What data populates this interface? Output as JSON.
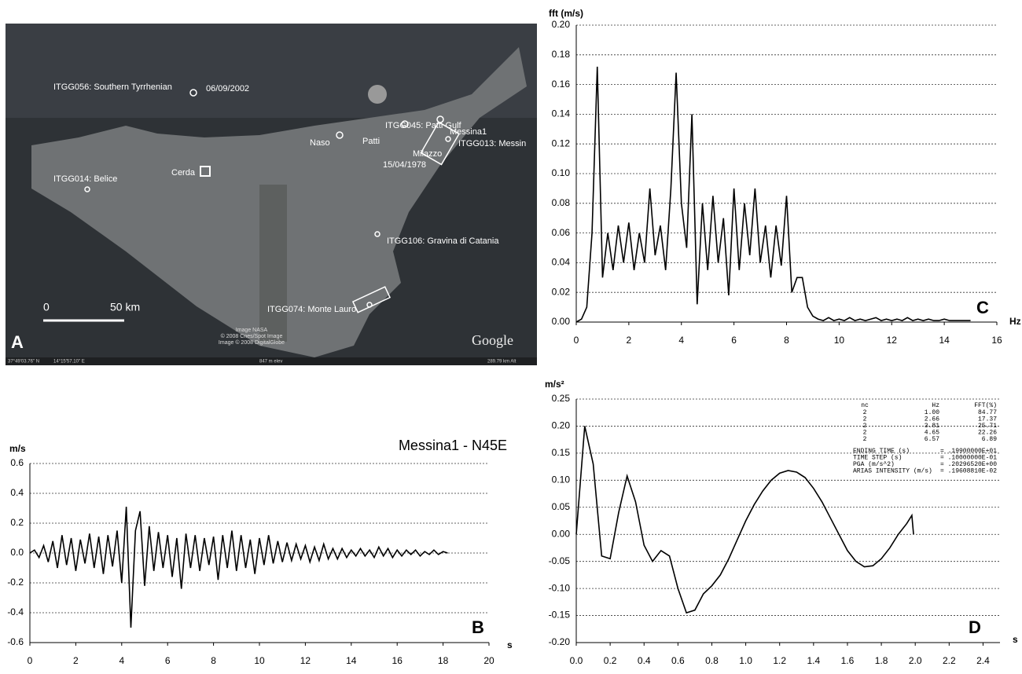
{
  "map": {
    "labels": [
      "ITGG056: Southern Tyrrhenian",
      "06/09/2002",
      "ITGG045: Patti Gulf",
      "Patti",
      "Milazzo",
      "Messina1",
      "Naso",
      "15/04/1978",
      "ITGG013: Messin",
      "Cerda",
      "ITGG014: Belice",
      "ITGG106: Gravina di Catania",
      "ITGG074: Monte Lauro"
    ],
    "scale": {
      "zero": "0",
      "length": "50 km"
    },
    "panel": "A",
    "credits": [
      "Image NASA",
      "© 2008 Cnes/Spot Image",
      "Image © 2008 DigitalGlobe"
    ],
    "logo": "Google",
    "status": {
      "lat": "37°49'03.76\" N",
      "lon": "14°15'57.10\" E",
      "elev": "847 m elev",
      "alt": "289.79 km Alt"
    }
  },
  "chart_data": [
    {
      "type": "line",
      "title": "Messina1 - N45E",
      "ylabel": "m/s",
      "panel": "B",
      "xunit": "s",
      "color": "#000000",
      "grid": true,
      "xlim": [
        0,
        20
      ],
      "xticks": [
        0,
        2,
        4,
        6,
        8,
        10,
        12,
        14,
        16,
        18,
        20
      ],
      "ylim": [
        -0.6,
        0.6
      ],
      "yticks": [
        -0.6,
        -0.4,
        -0.2,
        {
          "value": 0,
          "label": "0.0"
        },
        0.2,
        0.4,
        0.6
      ],
      "x": [
        0,
        0.2,
        0.4,
        0.6,
        0.8,
        1,
        1.2,
        1.4,
        1.6,
        1.8,
        2,
        2.2,
        2.4,
        2.6,
        2.8,
        3,
        3.2,
        3.4,
        3.6,
        3.8,
        4,
        4.2,
        4.4,
        4.6,
        4.8,
        5,
        5.2,
        5.4,
        5.6,
        5.8,
        6,
        6.2,
        6.4,
        6.6,
        6.8,
        7,
        7.2,
        7.4,
        7.6,
        7.8,
        8,
        8.2,
        8.4,
        8.6,
        8.8,
        9,
        9.2,
        9.4,
        9.6,
        9.8,
        10,
        10.2,
        10.4,
        10.6,
        10.8,
        11,
        11.2,
        11.4,
        11.6,
        11.8,
        12,
        12.2,
        12.4,
        12.6,
        12.8,
        13,
        13.2,
        13.4,
        13.6,
        13.8,
        14,
        14.2,
        14.4,
        14.6,
        14.8,
        15,
        15.2,
        15.4,
        15.6,
        15.8,
        16,
        16.2,
        16.4,
        16.6,
        16.8,
        17,
        17.2,
        17.4,
        17.6,
        17.8,
        18,
        18.2
      ],
      "values": [
        0,
        0.02,
        -0.03,
        0.05,
        -0.06,
        0.08,
        -0.1,
        0.12,
        -0.08,
        0.1,
        -0.12,
        0.09,
        -0.07,
        0.13,
        -0.1,
        0.11,
        -0.14,
        0.12,
        -0.09,
        0.15,
        -0.2,
        0.31,
        -0.5,
        0.15,
        0.28,
        -0.22,
        0.18,
        -0.12,
        0.14,
        -0.1,
        0.12,
        -0.16,
        0.1,
        -0.24,
        0.13,
        -0.1,
        0.12,
        -0.12,
        0.1,
        -0.08,
        0.11,
        -0.18,
        0.12,
        -0.1,
        0.15,
        -0.12,
        0.12,
        -0.1,
        0.09,
        -0.14,
        0.1,
        -0.08,
        0.12,
        -0.07,
        0.08,
        -0.06,
        0.07,
        -0.05,
        0.06,
        -0.04,
        0.05,
        -0.06,
        0.04,
        -0.05,
        0.06,
        -0.04,
        0.03,
        -0.04,
        0.03,
        -0.03,
        0.02,
        -0.02,
        0.03,
        -0.02,
        0.02,
        -0.03,
        0.04,
        -0.02,
        0.03,
        -0.03,
        0.02,
        -0.02,
        0.02,
        -0.01,
        0.02,
        -0.02,
        0.01,
        -0.01,
        0.02,
        -0.01,
        0.01,
        0
      ]
    },
    {
      "type": "line",
      "ylabel": "fft (m/s)",
      "panel": "C",
      "xunit": "Hz",
      "color": "#000000",
      "grid": true,
      "xlim": [
        0,
        16
      ],
      "xticks": [
        0,
        2,
        4,
        6,
        8,
        10,
        12,
        14,
        16
      ],
      "ylim": [
        0,
        0.2
      ],
      "yticks": [
        {
          "value": 0,
          "label": "0.00"
        },
        0.02,
        0.04,
        0.06,
        0.08,
        {
          "value": 0.1,
          "label": "0.10"
        },
        0.12,
        0.14,
        0.16,
        0.18,
        {
          "value": 0.2,
          "label": "0.20"
        }
      ],
      "x": [
        0,
        0.2,
        0.4,
        0.6,
        0.8,
        1,
        1.2,
        1.4,
        1.6,
        1.8,
        2,
        2.2,
        2.4,
        2.6,
        2.8,
        3,
        3.2,
        3.4,
        3.6,
        3.8,
        4,
        4.2,
        4.4,
        4.6,
        4.8,
        5,
        5.2,
        5.4,
        5.6,
        5.8,
        6,
        6.2,
        6.4,
        6.6,
        6.8,
        7,
        7.2,
        7.4,
        7.6,
        7.8,
        8,
        8.2,
        8.4,
        8.6,
        8.8,
        9,
        9.2,
        9.4,
        9.6,
        9.8,
        10,
        10.2,
        10.4,
        10.6,
        10.8,
        11,
        11.2,
        11.4,
        11.6,
        11.8,
        12,
        12.2,
        12.4,
        12.6,
        12.8,
        13,
        13.2,
        13.4,
        13.6,
        13.8,
        14,
        14.2,
        14.4,
        14.6,
        14.8,
        15
      ],
      "values": [
        0,
        0.002,
        0.01,
        0.06,
        0.172,
        0.03,
        0.06,
        0.035,
        0.065,
        0.04,
        0.067,
        0.035,
        0.06,
        0.04,
        0.09,
        0.045,
        0.065,
        0.035,
        0.09,
        0.168,
        0.08,
        0.05,
        0.14,
        0.012,
        0.08,
        0.035,
        0.085,
        0.04,
        0.07,
        0.018,
        0.09,
        0.035,
        0.08,
        0.045,
        0.09,
        0.04,
        0.065,
        0.03,
        0.065,
        0.038,
        0.085,
        0.02,
        0.03,
        0.03,
        0.01,
        0.004,
        0.002,
        0.001,
        0.003,
        0.001,
        0.002,
        0.001,
        0.003,
        0.001,
        0.002,
        0.001,
        0.002,
        0.003,
        0.001,
        0.002,
        0.001,
        0.002,
        0.001,
        0.003,
        0.001,
        0.002,
        0.001,
        0.002,
        0.001,
        0.001,
        0.002,
        0.001,
        0.001,
        0.001,
        0.001,
        0.001
      ]
    },
    {
      "type": "line",
      "ylabel": "m/s²",
      "panel": "D",
      "xunit": "s",
      "color": "#000000",
      "grid": true,
      "xlim": [
        0,
        2.5
      ],
      "xticks": [
        {
          "value": 0,
          "label": "0.0"
        },
        0.2,
        0.4,
        0.6,
        0.8,
        {
          "value": 1,
          "label": "1.0"
        },
        1.2,
        1.4,
        1.6,
        1.8,
        {
          "value": 2,
          "label": "2.0"
        },
        2.2,
        2.4
      ],
      "ylim": [
        -0.2,
        0.25
      ],
      "yticks": [
        {
          "value": -0.2,
          "label": "-0.20"
        },
        -0.15,
        {
          "value": -0.1,
          "label": "-0.10"
        },
        -0.05,
        {
          "value": 0,
          "label": "0.00"
        },
        0.05,
        {
          "value": 0.1,
          "label": "0.10"
        },
        0.15,
        {
          "value": 0.2,
          "label": "0.20"
        },
        0.25
      ],
      "x": [
        0,
        0.05,
        0.1,
        0.15,
        0.2,
        0.25,
        0.3,
        0.35,
        0.4,
        0.45,
        0.5,
        0.55,
        0.6,
        0.65,
        0.7,
        0.75,
        0.8,
        0.85,
        0.9,
        0.95,
        1,
        1.05,
        1.1,
        1.15,
        1.2,
        1.25,
        1.3,
        1.35,
        1.4,
        1.45,
        1.5,
        1.55,
        1.6,
        1.65,
        1.7,
        1.75,
        1.8,
        1.85,
        1.9,
        1.95,
        1.98,
        1.99
      ],
      "values": [
        0,
        0.2,
        0.13,
        -0.04,
        -0.045,
        0.04,
        0.108,
        0.06,
        -0.02,
        -0.05,
        -0.03,
        -0.04,
        -0.1,
        -0.145,
        -0.14,
        -0.11,
        -0.095,
        -0.075,
        -0.045,
        -0.01,
        0.025,
        0.055,
        0.08,
        0.1,
        0.113,
        0.118,
        0.115,
        0.105,
        0.085,
        0.06,
        0.03,
        0,
        -0.03,
        -0.05,
        -0.06,
        -0.058,
        -0.045,
        -0.025,
        0,
        0.02,
        0.035,
        0
      ],
      "annotation_table": {
        "columns": [
          "nc",
          "Hz",
          "FFT(%)"
        ],
        "rows": [
          [
            "2",
            "1.00",
            "84.77"
          ],
          [
            "2",
            "2.66",
            "17.37"
          ],
          [
            "2",
            "3.81",
            "25.71"
          ],
          [
            "2",
            "4.65",
            "22.26"
          ],
          [
            "2",
            "6.57",
            "6.89"
          ]
        ]
      },
      "parameters": [
        {
          "name": "ENDING TIME (s)",
          "value": "= .19900000E+01"
        },
        {
          "name": "TIME STEP (s)",
          "value": "= .10000000E-01"
        },
        {
          "name": "PGA (m/s^2)",
          "value": "= .20296520E+00"
        },
        {
          "name": "ARIAS INTENSITY (m/s)",
          "value": "= .19608810E-02"
        }
      ]
    }
  ]
}
